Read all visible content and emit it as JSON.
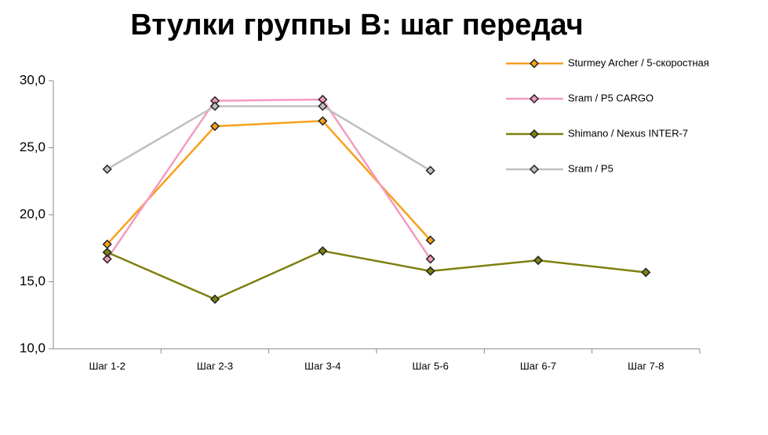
{
  "chart_data": {
    "type": "line",
    "title": "Втулки группы В: шаг передач",
    "categories": [
      "Шаг 1-2",
      "Шаг 2-3",
      "Шаг 3-4",
      "Шаг 5-6",
      "Шаг 6-7",
      "Шаг 7-8"
    ],
    "series": [
      {
        "name": "Sturmey Archer / 5-скоростная",
        "color": "#f7a11a",
        "values": [
          17.8,
          26.6,
          27.0,
          18.1,
          null,
          null
        ]
      },
      {
        "name": "Sram / P5 CARGO",
        "color": "#f49ac1",
        "values": [
          16.7,
          28.5,
          28.6,
          16.7,
          null,
          null
        ]
      },
      {
        "name": "Shimano / Nexus INTER-7",
        "color": "#7f7f10",
        "values": [
          17.2,
          13.7,
          17.3,
          15.8,
          16.6,
          15.7
        ]
      },
      {
        "name": "Sram / P5",
        "color": "#c0c0c0",
        "values": [
          23.4,
          28.1,
          28.1,
          23.3,
          null,
          null
        ]
      }
    ],
    "ylim": [
      10,
      30
    ],
    "yticks": [
      {
        "value": 10,
        "label": "10,0"
      },
      {
        "value": 15,
        "label": "15,0"
      },
      {
        "value": 20,
        "label": "20,0"
      },
      {
        "value": 25,
        "label": "25,0"
      },
      {
        "value": 30,
        "label": "30,0"
      }
    ]
  }
}
